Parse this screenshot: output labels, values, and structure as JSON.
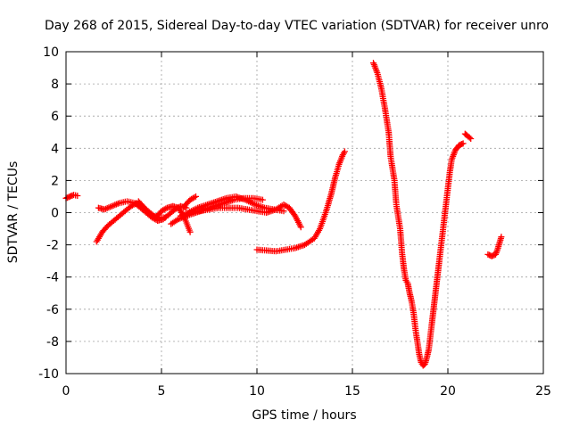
{
  "chart_data": {
    "type": "scatter",
    "title": "Day 268 of 2015, Sidereal Day-to-day VTEC variation (SDTVAR) for receiver unro",
    "xlabel": "GPS time / hours",
    "ylabel": "SDTVAR / TECUs",
    "xlim": [
      0,
      25
    ],
    "ylim": [
      -10,
      10
    ],
    "xticks": [
      0,
      5,
      10,
      15,
      20,
      25
    ],
    "yticks": [
      -10,
      -8,
      -6,
      -4,
      -2,
      0,
      2,
      4,
      6,
      8,
      10
    ],
    "grid": true,
    "legend": "none",
    "marker": "+",
    "color": "#ff0000",
    "tracks": [
      [
        [
          0.0,
          0.9
        ],
        [
          0.2,
          1.0
        ],
        [
          0.4,
          1.1
        ],
        [
          0.6,
          1.05
        ]
      ],
      [
        [
          1.6,
          -1.8
        ],
        [
          1.9,
          -1.2
        ],
        [
          2.2,
          -0.8
        ],
        [
          2.5,
          -0.5
        ],
        [
          2.8,
          -0.2
        ],
        [
          3.1,
          0.1
        ],
        [
          3.4,
          0.4
        ],
        [
          3.7,
          0.6
        ],
        [
          4.0,
          0.4
        ],
        [
          4.3,
          0.1
        ],
        [
          4.6,
          -0.2
        ],
        [
          4.9,
          -0.3
        ],
        [
          5.2,
          -0.3
        ]
      ],
      [
        [
          1.7,
          0.3
        ],
        [
          2.0,
          0.2
        ],
        [
          2.4,
          0.4
        ],
        [
          2.8,
          0.6
        ],
        [
          3.2,
          0.7
        ],
        [
          3.6,
          0.6
        ],
        [
          3.9,
          0.3
        ],
        [
          4.2,
          0.0
        ],
        [
          4.5,
          -0.3
        ],
        [
          4.8,
          -0.5
        ],
        [
          5.1,
          -0.4
        ],
        [
          5.4,
          -0.1
        ],
        [
          5.7,
          0.2
        ],
        [
          6.0,
          0.4
        ],
        [
          6.3,
          0.3
        ]
      ],
      [
        [
          3.8,
          0.7
        ],
        [
          4.1,
          0.3
        ],
        [
          4.4,
          -0.1
        ],
        [
          4.7,
          -0.3
        ],
        [
          5.0,
          0.1
        ],
        [
          5.3,
          0.3
        ],
        [
          5.6,
          0.4
        ],
        [
          5.9,
          0.3
        ],
        [
          6.2,
          -0.3
        ],
        [
          6.5,
          -1.2
        ]
      ],
      [
        [
          5.5,
          -0.7
        ],
        [
          5.9,
          -0.4
        ],
        [
          6.3,
          -0.2
        ],
        [
          6.8,
          0.0
        ],
        [
          7.3,
          0.2
        ],
        [
          7.8,
          0.4
        ],
        [
          8.3,
          0.6
        ],
        [
          8.8,
          0.8
        ],
        [
          9.3,
          0.9
        ],
        [
          9.8,
          0.9
        ],
        [
          10.3,
          0.8
        ]
      ],
      [
        [
          6.4,
          0.0
        ],
        [
          6.9,
          0.3
        ],
        [
          7.4,
          0.5
        ],
        [
          7.9,
          0.7
        ],
        [
          8.4,
          0.9
        ],
        [
          8.9,
          1.0
        ],
        [
          9.4,
          0.8
        ],
        [
          9.9,
          0.5
        ],
        [
          10.4,
          0.3
        ],
        [
          10.9,
          0.2
        ],
        [
          11.4,
          0.1
        ]
      ],
      [
        [
          6.0,
          -0.2
        ],
        [
          6.5,
          0.0
        ],
        [
          7.0,
          0.1
        ],
        [
          7.5,
          0.2
        ],
        [
          8.0,
          0.3
        ],
        [
          8.5,
          0.3
        ],
        [
          9.0,
          0.3
        ],
        [
          9.5,
          0.2
        ],
        [
          10.0,
          0.1
        ],
        [
          10.5,
          0.0
        ],
        [
          11.0,
          0.2
        ],
        [
          11.4,
          0.5
        ],
        [
          11.7,
          0.3
        ],
        [
          12.0,
          -0.2
        ],
        [
          12.3,
          -0.9
        ]
      ],
      [
        [
          6.2,
          0.4
        ],
        [
          6.5,
          0.8
        ],
        [
          6.8,
          1.0
        ]
      ],
      [
        [
          10.0,
          -2.3
        ],
        [
          10.5,
          -2.35
        ],
        [
          11.0,
          -2.4
        ],
        [
          11.5,
          -2.3
        ],
        [
          12.0,
          -2.2
        ],
        [
          12.5,
          -2.0
        ],
        [
          13.0,
          -1.6
        ],
        [
          13.3,
          -1.0
        ],
        [
          13.6,
          0.0
        ],
        [
          13.9,
          1.2
        ],
        [
          14.1,
          2.2
        ],
        [
          14.3,
          3.0
        ],
        [
          14.5,
          3.6
        ],
        [
          14.6,
          3.8
        ]
      ],
      [
        [
          16.1,
          9.3
        ],
        [
          16.3,
          8.7
        ],
        [
          16.5,
          7.8
        ],
        [
          16.7,
          6.5
        ],
        [
          16.9,
          5.0
        ],
        [
          17.0,
          3.5
        ],
        [
          17.2,
          2.0
        ],
        [
          17.3,
          0.5
        ],
        [
          17.5,
          -1.0
        ],
        [
          17.6,
          -2.5
        ],
        [
          17.7,
          -3.5
        ],
        [
          17.8,
          -4.2
        ],
        [
          17.9,
          -4.4
        ],
        [
          18.0,
          -5.0
        ],
        [
          18.1,
          -5.5
        ],
        [
          18.2,
          -6.2
        ],
        [
          18.3,
          -7.2
        ],
        [
          18.4,
          -8.0
        ],
        [
          18.5,
          -8.8
        ],
        [
          18.6,
          -9.3
        ],
        [
          18.7,
          -9.5
        ],
        [
          18.8,
          -9.4
        ],
        [
          18.9,
          -9.0
        ],
        [
          19.0,
          -8.5
        ],
        [
          19.1,
          -7.5
        ],
        [
          19.2,
          -6.5
        ],
        [
          19.3,
          -5.5
        ],
        [
          19.4,
          -4.5
        ],
        [
          19.5,
          -3.5
        ],
        [
          19.6,
          -2.5
        ],
        [
          19.7,
          -1.5
        ],
        [
          19.8,
          -0.5
        ],
        [
          19.9,
          0.5
        ],
        [
          20.0,
          1.5
        ],
        [
          20.1,
          2.5
        ],
        [
          20.2,
          3.3
        ],
        [
          20.4,
          3.9
        ],
        [
          20.6,
          4.2
        ],
        [
          20.8,
          4.3
        ]
      ],
      [
        [
          20.9,
          4.9
        ],
        [
          21.0,
          4.8
        ],
        [
          21.2,
          4.6
        ]
      ],
      [
        [
          22.1,
          -2.6
        ],
        [
          22.3,
          -2.7
        ],
        [
          22.5,
          -2.6
        ],
        [
          22.6,
          -2.3
        ],
        [
          22.7,
          -1.9
        ],
        [
          22.8,
          -1.5
        ]
      ]
    ]
  }
}
